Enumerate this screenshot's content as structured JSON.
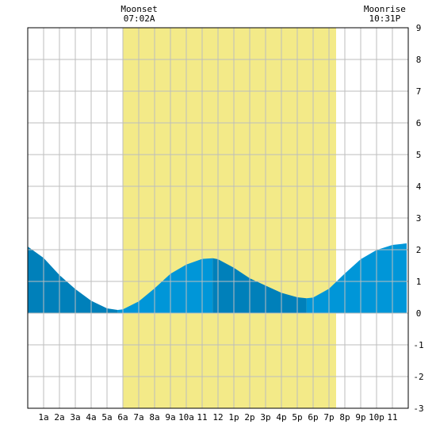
{
  "chart_data": {
    "type": "area",
    "x_unit": "hour of day",
    "xlim": [
      0,
      24
    ],
    "ylim": [
      -3,
      9
    ],
    "y_ticks": [
      -3,
      -2,
      -1,
      0,
      1,
      2,
      3,
      4,
      5,
      6,
      7,
      8,
      9
    ],
    "x_ticks": [
      {
        "x": 1,
        "label": "1a"
      },
      {
        "x": 2,
        "label": "2a"
      },
      {
        "x": 3,
        "label": "3a"
      },
      {
        "x": 4,
        "label": "4a"
      },
      {
        "x": 5,
        "label": "5a"
      },
      {
        "x": 6,
        "label": "6a"
      },
      {
        "x": 7,
        "label": "7a"
      },
      {
        "x": 8,
        "label": "8a"
      },
      {
        "x": 9,
        "label": "9a"
      },
      {
        "x": 10,
        "label": "10a"
      },
      {
        "x": 11,
        "label": "11"
      },
      {
        "x": 12,
        "label": "12"
      },
      {
        "x": 13,
        "label": "1p"
      },
      {
        "x": 14,
        "label": "2p"
      },
      {
        "x": 15,
        "label": "3p"
      },
      {
        "x": 16,
        "label": "4p"
      },
      {
        "x": 17,
        "label": "5p"
      },
      {
        "x": 18,
        "label": "6p"
      },
      {
        "x": 19,
        "label": "7p"
      },
      {
        "x": 20,
        "label": "8p"
      },
      {
        "x": 21,
        "label": "9p"
      },
      {
        "x": 22,
        "label": "10p"
      },
      {
        "x": 23,
        "label": "11"
      }
    ],
    "grid": true,
    "daylight": {
      "start": 6.02,
      "end": 19.45,
      "color": "#f3ea88"
    },
    "series": [
      {
        "x": [
          0,
          1,
          2,
          3,
          4,
          5,
          5.67,
          6,
          7,
          8,
          9,
          10,
          11,
          11.67,
          12,
          13,
          14,
          15,
          16,
          17,
          17.58,
          18,
          19,
          20,
          21,
          22,
          23,
          23.9
        ],
        "y": [
          2.1,
          1.74,
          1.2,
          0.76,
          0.39,
          0.15,
          0.1,
          0.12,
          0.37,
          0.78,
          1.24,
          1.53,
          1.71,
          1.73,
          1.7,
          1.43,
          1.1,
          0.87,
          0.64,
          0.5,
          0.47,
          0.49,
          0.77,
          1.25,
          1.7,
          1.99,
          2.15,
          2.2
        ]
      }
    ],
    "colors": {
      "rising": "#0096d8",
      "falling": "#0080ba"
    },
    "top_annotations": [
      {
        "x": 7.03,
        "title": "Moonset",
        "time": "07:02A"
      },
      {
        "x": 22.52,
        "title": "Moonrise",
        "time": "10:31P"
      }
    ]
  }
}
